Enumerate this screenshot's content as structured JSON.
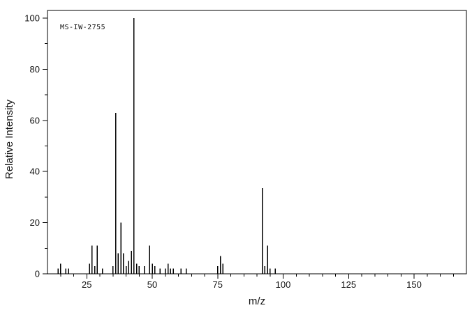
{
  "figure": {
    "background": "#ffffff",
    "axis_color": "#000000",
    "peak_color": "#000000",
    "text_color": "#111111"
  },
  "chart_data": {
    "type": "bar",
    "subtype": "mass-spectrum",
    "title": "",
    "annotation": "MS-IW-2755",
    "xlabel": "m/z",
    "ylabel": "Relative Intensity",
    "xlim": [
      10,
      170
    ],
    "ylim": [
      0,
      100
    ],
    "x_major_ticks": [
      25,
      50,
      75,
      100,
      125,
      150
    ],
    "x_minor_tick_step": 5,
    "y_major_ticks": [
      0,
      20,
      40,
      60,
      80,
      100
    ],
    "y_minor_tick_step": 10,
    "grid": false,
    "legend": false,
    "peaks": [
      [
        14,
        2
      ],
      [
        15,
        4
      ],
      [
        17,
        2
      ],
      [
        18,
        2
      ],
      [
        26,
        4
      ],
      [
        27,
        11
      ],
      [
        28,
        3
      ],
      [
        29,
        11
      ],
      [
        31,
        2
      ],
      [
        35,
        3
      ],
      [
        36,
        63
      ],
      [
        37,
        8
      ],
      [
        38,
        20
      ],
      [
        39,
        8
      ],
      [
        40,
        3
      ],
      [
        41,
        5
      ],
      [
        42,
        9
      ],
      [
        43,
        100
      ],
      [
        44,
        4
      ],
      [
        45,
        3
      ],
      [
        47,
        3
      ],
      [
        49,
        11
      ],
      [
        50,
        4
      ],
      [
        51,
        3
      ],
      [
        53,
        2
      ],
      [
        55,
        2
      ],
      [
        56,
        4
      ],
      [
        57,
        2
      ],
      [
        58,
        2
      ],
      [
        61,
        2
      ],
      [
        63,
        2
      ],
      [
        75,
        3
      ],
      [
        76,
        7
      ],
      [
        77,
        4
      ],
      [
        92,
        33.5
      ],
      [
        93,
        3
      ],
      [
        94,
        11
      ],
      [
        95,
        2
      ],
      [
        97,
        2
      ]
    ]
  }
}
